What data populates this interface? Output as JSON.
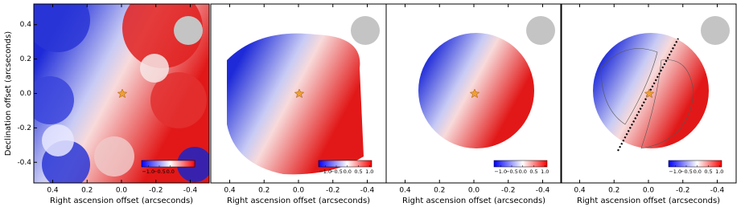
{
  "chart_data": [
    {
      "type": "image",
      "xlabel": "Right ascension offset (arcseconds)",
      "ylabel": "Declination offset (arcseconds)",
      "xlim": [
        0.51,
        -0.51
      ],
      "ylim": [
        -0.52,
        0.52
      ],
      "xticks": [
        0.4,
        0.2,
        {
          "value": 0,
          "label": "0.0"
        },
        -0.2,
        -0.4
      ],
      "yticks": [
        0.4,
        0.2,
        {
          "value": 0,
          "label": "0.0"
        },
        -0.2,
        -0.4
      ],
      "colorbar": {
        "lim": [
          -1.3,
          1.1
        ],
        "ticks": [
          {
            "value": -1,
            "label": "−1.0"
          },
          {
            "value": -0.5,
            "label": "−0.5"
          },
          {
            "value": 0,
            "label": "0.0"
          }
        ]
      }
    },
    {
      "type": "image",
      "xlabel": "Right ascension offset (arcseconds)",
      "xlim": [
        0.51,
        -0.51
      ],
      "ylim": [
        -0.52,
        0.52
      ],
      "xticks": [
        0.4,
        0.2,
        {
          "value": 0,
          "label": "0.0"
        },
        -0.2,
        -0.4
      ],
      "colorbar": {
        "lim": [
          -1.3,
          1.1
        ],
        "ticks": [
          {
            "value": -1,
            "label": "−1.0"
          },
          {
            "value": -0.5,
            "label": "−0.5"
          },
          {
            "value": 0,
            "label": "0.0"
          },
          {
            "value": 0.5,
            "label": "0.5"
          },
          {
            "value": 1,
            "label": "1.0"
          }
        ]
      }
    },
    {
      "type": "image",
      "xlabel": "Right ascension offset (arcseconds)",
      "xlim": [
        0.51,
        -0.51
      ],
      "ylim": [
        -0.52,
        0.52
      ],
      "xticks": [
        0.4,
        0.2,
        {
          "value": 0,
          "label": "0.0"
        },
        -0.2,
        -0.4
      ],
      "colorbar": {
        "lim": [
          -1.3,
          1.1
        ],
        "ticks": [
          {
            "value": -1,
            "label": "−1.0"
          },
          {
            "value": -0.5,
            "label": "−0.5"
          },
          {
            "value": 0,
            "label": "0.0"
          },
          {
            "value": 0.5,
            "label": "0.5"
          },
          {
            "value": 1,
            "label": "1.0"
          }
        ]
      }
    },
    {
      "type": "image",
      "xlabel": "Right ascension offset (arcseconds)",
      "xlim": [
        0.51,
        -0.51
      ],
      "ylim": [
        -0.52,
        0.52
      ],
      "xticks": [
        0.4,
        0.2,
        {
          "value": 0,
          "label": "0.0"
        },
        -0.2,
        -0.4
      ],
      "colorbar": {
        "lim": [
          -1.3,
          1.1
        ],
        "ticks": [
          {
            "value": -1,
            "label": "−1.0"
          },
          {
            "value": -0.5,
            "label": "−0.5"
          },
          {
            "value": 0,
            "label": "0.0"
          },
          {
            "value": 0.5,
            "label": "0.5"
          },
          {
            "value": 1,
            "label": "1.0"
          }
        ]
      }
    }
  ]
}
